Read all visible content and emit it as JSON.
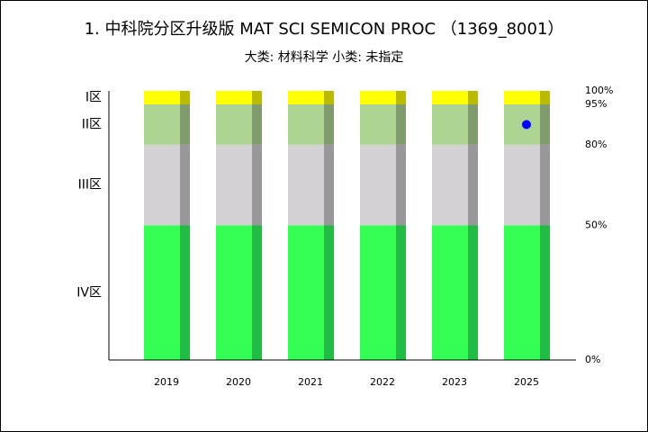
{
  "chart_data": {
    "type": "stacked-bar",
    "title": "1. 中科院分区升级版 MAT SCI SEMICON PROC （1369_8001）",
    "subtitle": "大类: 材料科学 小类: 未指定",
    "categories": [
      "2019",
      "2020",
      "2021",
      "2022",
      "2023",
      "2025"
    ],
    "series": [
      {
        "name": "IV区",
        "color": "#33ff55",
        "shade_color": "#22bb44",
        "values": [
          50,
          50,
          50,
          50,
          50,
          50
        ]
      },
      {
        "name": "III区",
        "color": "#d3d1d3",
        "shade_color": "#999799",
        "values": [
          30,
          30,
          30,
          30,
          30,
          30
        ]
      },
      {
        "name": "II区",
        "color": "#aed494",
        "shade_color": "#809c6d",
        "values": [
          15,
          15,
          15,
          15,
          15,
          15
        ]
      },
      {
        "name": "I区",
        "color": "#ffff00",
        "shade_color": "#bbb800",
        "values": [
          5,
          5,
          5,
          5,
          5,
          5
        ]
      }
    ],
    "marker": {
      "x": "2025",
      "value": 87.5,
      "color": "#0000ff"
    },
    "ylim": [
      0,
      100
    ],
    "yticks": [
      {
        "value": 0,
        "label": "0%"
      },
      {
        "value": 50,
        "label": "50%"
      },
      {
        "value": 80,
        "label": "80%"
      },
      {
        "value": 95,
        "label": "95%"
      },
      {
        "value": 100,
        "label": "100%"
      }
    ]
  }
}
